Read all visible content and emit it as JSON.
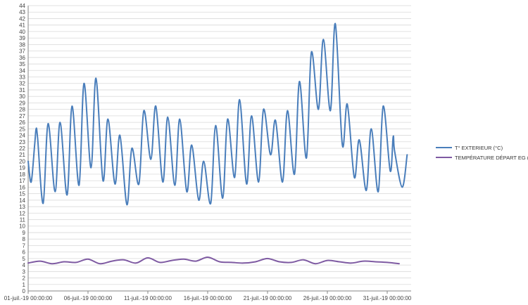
{
  "chart_data": {
    "type": "line",
    "title": "",
    "xlabel": "",
    "ylabel": "",
    "ylim": [
      0,
      44
    ],
    "y_tick_step": 1,
    "grid": true,
    "legend_position": "right",
    "x_range": [
      "01-juil.-19 00:00:00",
      "02-août-19 00:00:00"
    ],
    "x_ticks": [
      "01-juil.-19 00:00:00",
      "06-juil.-19 00:00:00",
      "11-juil.-19 00:00:00",
      "16-juil.-19 00:00:00",
      "21-juil.-19 00:00:00",
      "26-juil.-19 00:00:00",
      "31-juil.-19 00:00:00"
    ],
    "series": [
      {
        "name": "T° EXTERIEUR (°C)",
        "color": "#4a7ebb",
        "points": [
          [
            "01-juil.-19 00:00:00",
            20.0
          ],
          [
            "01-juil.-19 06:00:00",
            16.8
          ],
          [
            "01-juil.-19 13:00:00",
            22.5
          ],
          [
            "01-juil.-19 16:00:00",
            25.0
          ],
          [
            "01-juil.-19 19:00:00",
            23.5
          ],
          [
            "02-juil.-19 06:00:00",
            13.5
          ],
          [
            "02-juil.-19 16:00:00",
            25.8
          ],
          [
            "03-juil.-19 06:00:00",
            15.3
          ],
          [
            "03-juil.-19 16:00:00",
            26.0
          ],
          [
            "04-juil.-19 06:00:00",
            14.8
          ],
          [
            "04-juil.-19 16:00:00",
            28.5
          ],
          [
            "05-juil.-19 06:00:00",
            16.3
          ],
          [
            "05-juil.-19 16:00:00",
            32.0
          ],
          [
            "06-juil.-19 06:00:00",
            19.0
          ],
          [
            "06-juil.-19 16:00:00",
            32.8
          ],
          [
            "07-juil.-19 06:00:00",
            17.0
          ],
          [
            "07-juil.-19 16:00:00",
            26.5
          ],
          [
            "08-juil.-19 06:00:00",
            16.5
          ],
          [
            "08-juil.-19 16:00:00",
            24.0
          ],
          [
            "09-juil.-19 06:00:00",
            13.3
          ],
          [
            "09-juil.-19 16:00:00",
            22.0
          ],
          [
            "10-juil.-19 06:00:00",
            16.5
          ],
          [
            "10-juil.-19 16:00:00",
            27.8
          ],
          [
            "11-juil.-19 06:00:00",
            20.3
          ],
          [
            "11-juil.-19 16:00:00",
            28.5
          ],
          [
            "12-juil.-19 06:00:00",
            16.8
          ],
          [
            "12-juil.-19 16:00:00",
            26.8
          ],
          [
            "13-juil.-19 06:00:00",
            16.3
          ],
          [
            "13-juil.-19 16:00:00",
            26.5
          ],
          [
            "14-juil.-19 06:00:00",
            15.3
          ],
          [
            "14-juil.-19 16:00:00",
            22.5
          ],
          [
            "15-juil.-19 06:00:00",
            14.0
          ],
          [
            "15-juil.-19 16:00:00",
            20.0
          ],
          [
            "16-juil.-19 06:00:00",
            13.5
          ],
          [
            "16-juil.-19 16:00:00",
            25.5
          ],
          [
            "17-juil.-19 06:00:00",
            14.3
          ],
          [
            "17-juil.-19 16:00:00",
            26.5
          ],
          [
            "18-juil.-19 06:00:00",
            17.5
          ],
          [
            "18-juil.-19 16:00:00",
            29.5
          ],
          [
            "19-juil.-19 06:00:00",
            16.5
          ],
          [
            "19-juil.-19 16:00:00",
            27.0
          ],
          [
            "20-juil.-19 06:00:00",
            16.8
          ],
          [
            "20-juil.-19 16:00:00",
            28.0
          ],
          [
            "21-juil.-19 06:00:00",
            21.0
          ],
          [
            "21-juil.-19 16:00:00",
            26.3
          ],
          [
            "22-juil.-19 06:00:00",
            16.8
          ],
          [
            "22-juil.-19 16:00:00",
            27.8
          ],
          [
            "23-juil.-19 06:00:00",
            18.0
          ],
          [
            "23-juil.-19 16:00:00",
            32.3
          ],
          [
            "24-juil.-19 06:00:00",
            20.5
          ],
          [
            "24-juil.-19 16:00:00",
            36.8
          ],
          [
            "25-juil.-19 06:00:00",
            28.0
          ],
          [
            "25-juil.-19 16:00:00",
            38.8
          ],
          [
            "26-juil.-19 06:00:00",
            27.8
          ],
          [
            "26-juil.-19 16:00:00",
            41.2
          ],
          [
            "27-juil.-19 06:00:00",
            22.5
          ],
          [
            "27-juil.-19 16:00:00",
            28.8
          ],
          [
            "28-juil.-19 06:00:00",
            17.5
          ],
          [
            "28-juil.-19 16:00:00",
            23.3
          ],
          [
            "29-juil.-19 06:00:00",
            15.5
          ],
          [
            "29-juil.-19 16:00:00",
            25.0
          ],
          [
            "30-juil.-19 06:00:00",
            15.3
          ],
          [
            "30-juil.-19 16:00:00",
            28.5
          ],
          [
            "31-juil.-19 06:00:00",
            18.5
          ],
          [
            "31-juil.-19 12:00:00",
            23.8
          ],
          [
            "31-juil.-19 15:00:00",
            21.5
          ],
          [
            "01-août-19 06:00:00",
            16.0
          ],
          [
            "01-août-19 16:00:00",
            21.0
          ]
        ]
      },
      {
        "name": "TEMPÉRATURE DÉPART EG (°C)",
        "color": "#7e5aa2",
        "points": [
          [
            "01-juil.-19 00:00:00",
            4.3
          ],
          [
            "02-juil.-19 00:00:00",
            4.6
          ],
          [
            "03-juil.-19 00:00:00",
            4.2
          ],
          [
            "04-juil.-19 00:00:00",
            4.5
          ],
          [
            "05-juil.-19 00:00:00",
            4.4
          ],
          [
            "06-juil.-19 00:00:00",
            4.9
          ],
          [
            "07-juil.-19 00:00:00",
            4.2
          ],
          [
            "08-juil.-19 00:00:00",
            4.6
          ],
          [
            "09-juil.-19 00:00:00",
            4.8
          ],
          [
            "10-juil.-19 00:00:00",
            4.3
          ],
          [
            "11-juil.-19 00:00:00",
            5.1
          ],
          [
            "12-juil.-19 00:00:00",
            4.4
          ],
          [
            "13-juil.-19 00:00:00",
            4.7
          ],
          [
            "14-juil.-19 00:00:00",
            4.9
          ],
          [
            "15-juil.-19 00:00:00",
            4.6
          ],
          [
            "16-juil.-19 00:00:00",
            5.2
          ],
          [
            "17-juil.-19 00:00:00",
            4.5
          ],
          [
            "18-juil.-19 00:00:00",
            4.4
          ],
          [
            "19-juil.-19 00:00:00",
            4.3
          ],
          [
            "20-juil.-19 00:00:00",
            4.5
          ],
          [
            "21-juil.-19 00:00:00",
            5.0
          ],
          [
            "22-juil.-19 00:00:00",
            4.5
          ],
          [
            "23-juil.-19 00:00:00",
            4.4
          ],
          [
            "24-juil.-19 00:00:00",
            4.8
          ],
          [
            "25-juil.-19 00:00:00",
            4.2
          ],
          [
            "26-juil.-19 00:00:00",
            4.7
          ],
          [
            "27-juil.-19 00:00:00",
            4.5
          ],
          [
            "28-juil.-19 00:00:00",
            4.3
          ],
          [
            "29-juil.-19 00:00:00",
            4.6
          ],
          [
            "30-juil.-19 00:00:00",
            4.5
          ],
          [
            "31-juil.-19 00:00:00",
            4.4
          ],
          [
            "01-août-19 00:00:00",
            4.2
          ]
        ]
      }
    ]
  }
}
